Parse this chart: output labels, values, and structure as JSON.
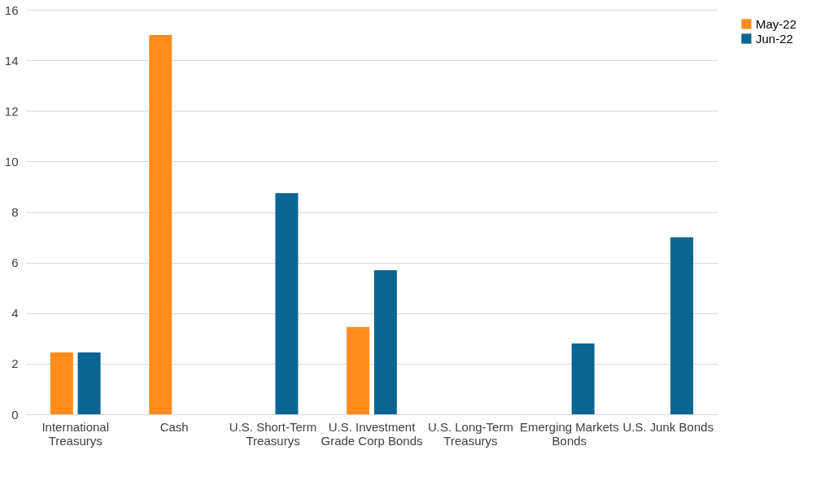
{
  "chart_data": {
    "type": "bar",
    "categories": [
      "International Treasurys",
      "Cash",
      "U.S. Short-Term Treasurys",
      "U.S. Investment Grade Corp Bonds",
      "U.S. Long-Term Treasurys",
      "Emerging Markets Bonds",
      "U.S. Junk Bonds"
    ],
    "series": [
      {
        "name": "May-22",
        "color": "#ff8c1a",
        "values": [
          2.45,
          15,
          null,
          3.45,
          null,
          null,
          null
        ]
      },
      {
        "name": "Jun-22",
        "color": "#0b6591",
        "values": [
          2.45,
          null,
          8.75,
          5.7,
          null,
          2.8,
          7.0
        ]
      }
    ],
    "ylim": [
      0,
      16
    ],
    "yticks": [
      0,
      2,
      4,
      6,
      8,
      10,
      12,
      14,
      16
    ],
    "grid": "y",
    "legend": "right"
  }
}
